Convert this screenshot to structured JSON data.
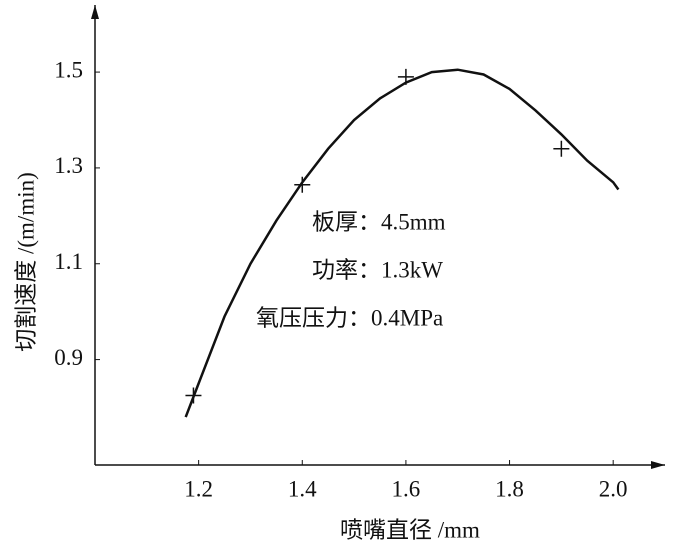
{
  "chart_data": {
    "type": "scatter",
    "x_label": "喷嘴直径 /mm",
    "y_label": "切割速度 /(m/min)",
    "annotations": [
      "板厚：4.5mm",
      "功率：1.3kW",
      "氧压压力：0.4MPa"
    ],
    "points": {
      "x": [
        1.19,
        1.4,
        1.6,
        1.9
      ],
      "y": [
        0.825,
        1.265,
        1.49,
        1.34
      ],
      "color": "#111111"
    },
    "curve": {
      "x": [
        1.175,
        1.2,
        1.25,
        1.3,
        1.35,
        1.4,
        1.45,
        1.5,
        1.55,
        1.6,
        1.65,
        1.7,
        1.75,
        1.8,
        1.85,
        1.9,
        1.95,
        2.0,
        2.01
      ],
      "y": [
        0.78,
        0.85,
        0.99,
        1.1,
        1.19,
        1.27,
        1.34,
        1.4,
        1.445,
        1.478,
        1.5,
        1.505,
        1.495,
        1.465,
        1.42,
        1.37,
        1.315,
        1.27,
        1.255
      ],
      "color": "#111111"
    },
    "xlim": [
      1.0,
      2.1
    ],
    "ylim": [
      0.68,
      1.64
    ],
    "xticks": [
      1.2,
      1.4,
      1.6,
      1.8,
      {
        "value": 2,
        "label": "2.0"
      }
    ],
    "yticks": [
      0.9,
      1.1,
      1.3,
      1.5
    ]
  }
}
